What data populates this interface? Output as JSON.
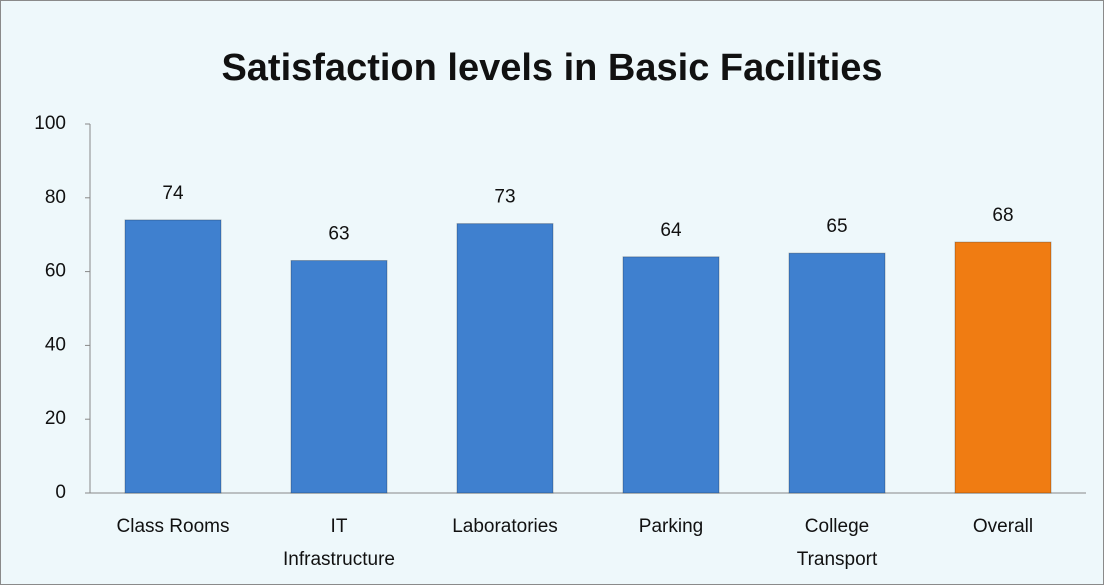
{
  "chart_data": {
    "type": "bar",
    "title": "Satisfaction levels in Basic Facilities",
    "categories": [
      "Class Rooms",
      "IT\nInfrastructure",
      "Laboratories",
      "Parking",
      "College\nTransport",
      "Overall"
    ],
    "values": [
      74,
      63,
      73,
      64,
      65,
      68
    ],
    "colors": [
      "#3f80cf",
      "#3f80cf",
      "#3f80cf",
      "#3f80cf",
      "#3f80cf",
      "#f07c12"
    ],
    "ylim": [
      0,
      100
    ],
    "yticks": [
      0,
      20,
      40,
      60,
      80,
      100
    ],
    "grid": false
  }
}
